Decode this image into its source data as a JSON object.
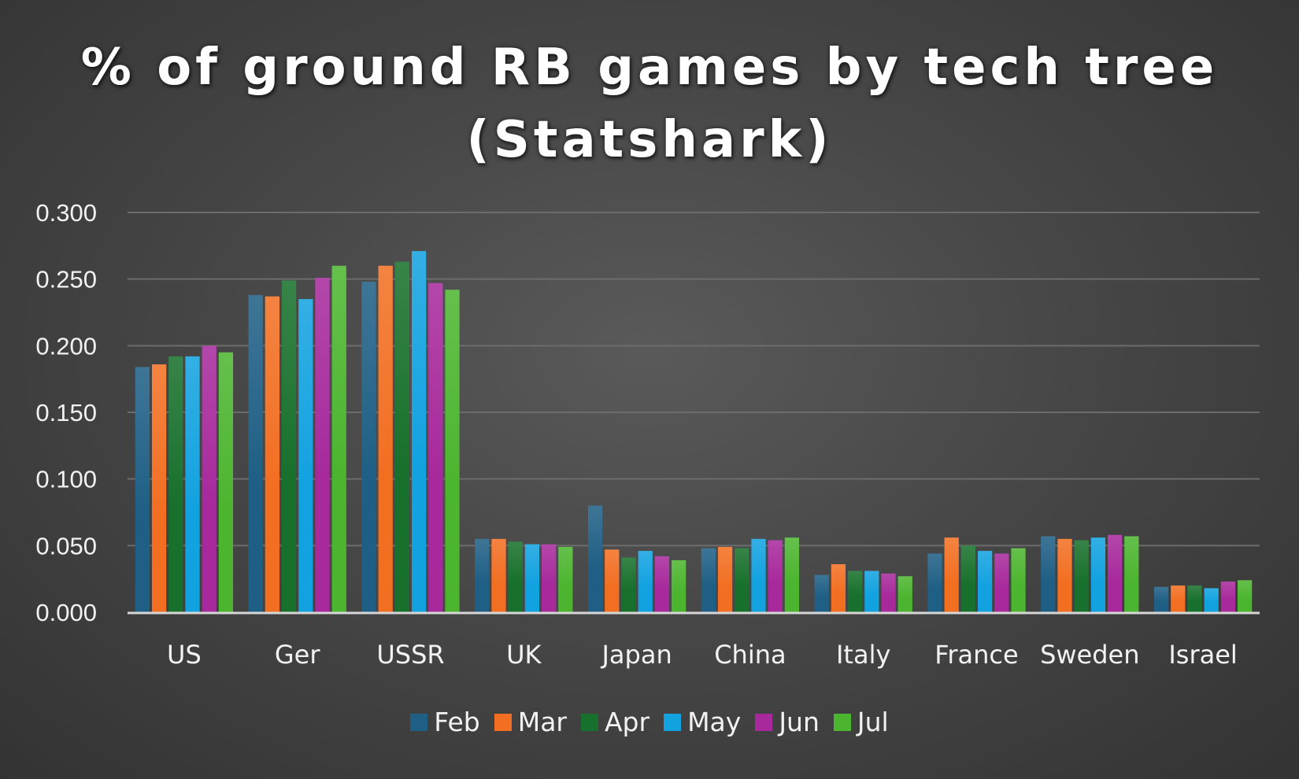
{
  "chart_data": {
    "type": "bar",
    "title_lines": [
      "% of ground RB games by tech tree",
      "(Statshark)"
    ],
    "categories": [
      "US",
      "Ger",
      "USSR",
      "UK",
      "Japan",
      "China",
      "Italy",
      "France",
      "Sweden",
      "Israel"
    ],
    "series": [
      {
        "name": "Feb",
        "color": "#1f5f85",
        "values": [
          0.184,
          0.238,
          0.248,
          0.055,
          0.08,
          0.048,
          0.028,
          0.044,
          0.057,
          0.019
        ]
      },
      {
        "name": "Mar",
        "color": "#f26f22",
        "values": [
          0.186,
          0.237,
          0.26,
          0.055,
          0.047,
          0.049,
          0.036,
          0.056,
          0.055,
          0.02
        ]
      },
      {
        "name": "Apr",
        "color": "#17702b",
        "values": [
          0.192,
          0.249,
          0.263,
          0.053,
          0.041,
          0.048,
          0.031,
          0.05,
          0.054,
          0.02
        ]
      },
      {
        "name": "May",
        "color": "#12a2e0",
        "values": [
          0.192,
          0.235,
          0.271,
          0.051,
          0.046,
          0.055,
          0.031,
          0.046,
          0.056,
          0.018
        ]
      },
      {
        "name": "Jun",
        "color": "#a7299c",
        "values": [
          0.2,
          0.251,
          0.247,
          0.051,
          0.042,
          0.054,
          0.029,
          0.044,
          0.058,
          0.023
        ]
      },
      {
        "name": "Jul",
        "color": "#4cb52f",
        "values": [
          0.195,
          0.26,
          0.242,
          0.049,
          0.039,
          0.056,
          0.027,
          0.048,
          0.057,
          0.024
        ]
      }
    ],
    "ylim": [
      0,
      0.3
    ],
    "yticks": [
      "0.000",
      "0.050",
      "0.100",
      "0.150",
      "0.200",
      "0.250",
      "0.300"
    ],
    "grid": true,
    "legend_position": "bottom"
  }
}
